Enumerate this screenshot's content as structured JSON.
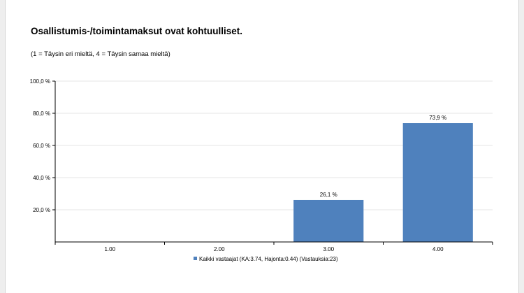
{
  "title": "Osallistumis-/toimintamaksut ovat kohtuulliset.",
  "subtitle": "(1 = Täysin eri mieltä, 4 = Täysin samaa mieltä)",
  "chart_data": {
    "type": "bar",
    "categories": [
      "1.00",
      "2.00",
      "3.00",
      "4.00"
    ],
    "series": [
      {
        "name": "Kaikki vastaajat (KA:3.74, Hajonta:0.44) (Vastauksia:23)",
        "values": [
          0,
          0,
          26.1,
          73.9
        ],
        "value_labels": [
          "",
          "",
          "26,1 %",
          "73,9 %"
        ],
        "color": "#4f81bd"
      }
    ],
    "ylim": [
      0,
      100
    ],
    "yticks": [
      20,
      40,
      60,
      80,
      100
    ],
    "ytick_labels": [
      "20,0 %",
      "40,0 %",
      "60,0 %",
      "80,0 %",
      "100,0 %"
    ],
    "grid": true,
    "legend_position": "bottom"
  }
}
